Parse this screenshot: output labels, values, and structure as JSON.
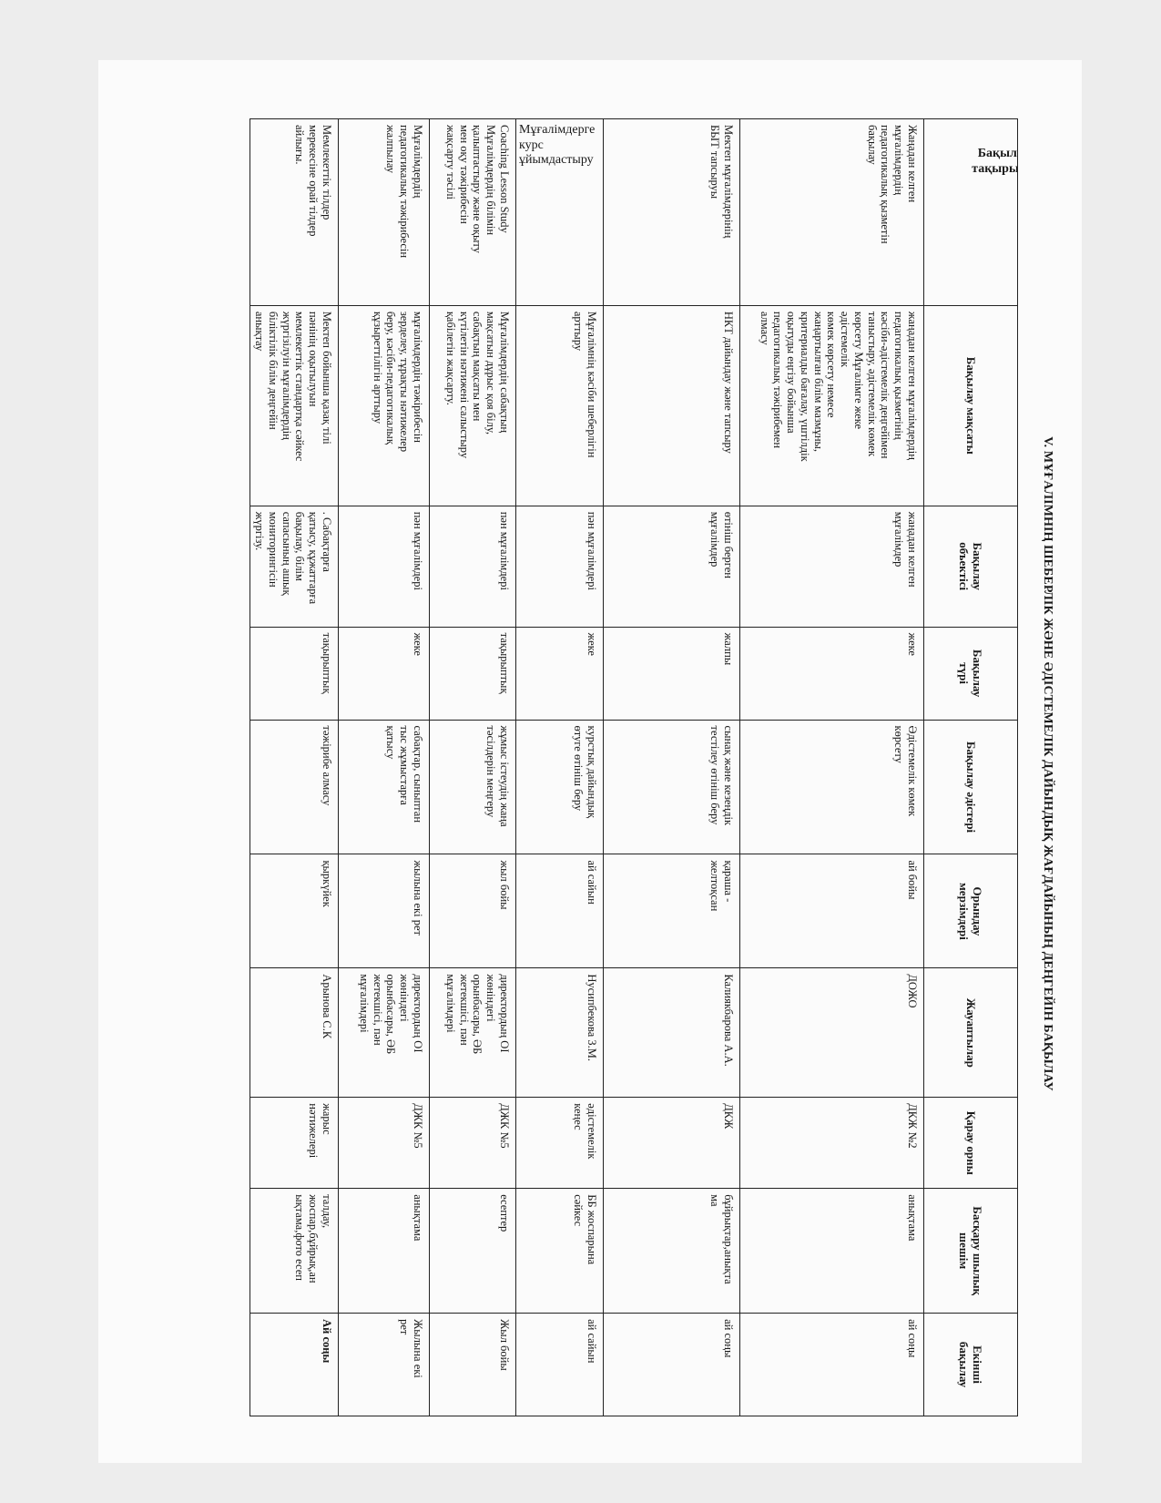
{
  "title": "V. МҰҒАЛІМНІҢ ШЕБЕРЛІК ЖӘНЕ ӘДІСТЕМЕЛІК ДАЙЫНДЫҚ ЖАҒДАЙЫНЫҢ ДЕҢГЕЙІН БАҚЫЛАУ",
  "table": {
    "headers": [
      "Бақылау\nтақырыбы",
      "Бақылау мақсаты",
      "Бақылау\nобъектісі",
      "Бақылау\nтүрі",
      "Бақылау әдістері",
      "Орындау\nмерзімдері",
      "Жауаптылар",
      "Қарау орны",
      "Басқару шылық\nшешім",
      "Екінші\nбақылау"
    ],
    "rows": [
      {
        "cells": [
          "Жаңадан келген\nмұғалімдердің\nпедагогикалық қызметін\nбақылау",
          "жаңадан келген мұғалімдердің\nпедагогикалық қызметінің\nкәсіби-әдістемелік деңгейімен\nтаныстыру, әдістемелік көмек\nкөрсету Мұғалімге жеке\nәдістемелік\nкөмек көрсету немесе\nжаңартылған білім мазмұны,\nкритериалды бағалау, үштілдік\nоқытуды еңгізу бойынша\nпедагогикалық тәжірибемен\nалмасу",
          "жаңадан келген\nмұғалімдер",
          "жеке",
          "Әдістемелік көмек\nкөрсету",
          "ай бойы",
          "ДОЖО",
          "ДКЖ №2",
          "анықтама",
          "ай соңы"
        ]
      },
      {
        "cells": [
          "Мектеп мұғалімдерінің\nБЫТ тапсыруы",
          "НКТ дайындау және тапсыру",
          "өтініш берген\nмұғалімдер",
          "жалпы",
          "сынақ және кезеңдік\nтестілеу өтініш беру",
          "қараша -\nжелтоқсан",
          "Калиякбарова А.А.",
          "ДКЖ",
          "бұйрықтар,анықта\nма",
          "ай соңы"
        ]
      },
      {
        "cells": [
          "Мұғалімдерге\nкурс\nұйымдастыру",
          "Мұғалімнің кәсіби шеберлігін\nарттыру",
          "пән мұғалімдері",
          "жеке",
          "курстық дайындық\nөтуге өтініш беру",
          "ай сайын",
          "Нусипбекова З.М.",
          "әдістемелік\nкеңес",
          "ББ жоспарына\nсәйкес",
          "ай сайын"
        ]
      },
      {
        "cells": [
          "Coaching Lesson Study\nМұғалімдердің білімін\nқалыптастыру және оқыту\nмен оқу тәжірибесін\nжақсарту тәсілі",
          "Мұғалімдердің сабақтың\nмақсатын дұрыс қоя білу,\nсабақтың мақсаты мен\nкүтілетін нәтижені салыстыру\nқабілетін жақсарту.",
          "пән мұғалімдері",
          "тақырыптық",
          "жұмыс істеудің жаңа\nтәсілдерін меңгеру",
          "жыл бойы",
          "директордың ОІ\nжөніндегі\nорынбасары, ӘБ\nжетекшісі, пән\nмұғалімдері",
          "ДЖК №5",
          "есептер",
          "Жыл бойы"
        ]
      },
      {
        "cells": [
          "Мұғалімдердің\nпедагогикалық тәжірибесін\nжалпылау",
          "мұғалімдердің тәжірибесін\nзерделеу, тұрақты нәтижелер\nберу, кәсіби-педагогикалық\nқұзыреттілігін арттыру",
          "пән мұғалімдері",
          "жеке",
          "сабақтар, сыныптан\nтыс жұмыстарға\nқатысу",
          "жылына екі рет",
          "директордың ОІ\nжөніндегі\nорынбасары, ӘБ\nжетекшісі, пән\nмұғалімдері",
          "ДЖК №5",
          "анықтама",
          "Жылына екі\nрет"
        ]
      },
      {
        "cells": [
          "Мемлекеттік тілдер\nмерекесіне орай тілдер\nайлығы.",
          "Мектеп бойынша қазақ тілі\nпәнінің оқытылуын\nмемлекеттік стандартқа сәйкес\nжүргізілуін мұғалімдердің\nбіліктілік білім деңгейін\nанықтау",
          ". Сабақтарға\nқатысу, құжаттарға\nбақылау, білім\nсапасының ашық\nмониторингісін\nжүргізу.",
          "тақырыптық",
          "тәжірибе алмасу",
          "қыркүйек",
          "Арынова С.К",
          "жарыс\nнәтижелері",
          "талдау,\nжоспар,бұйрық,ан\nықтама,фото есеп",
          "Ай соңы"
        ]
      }
    ]
  }
}
